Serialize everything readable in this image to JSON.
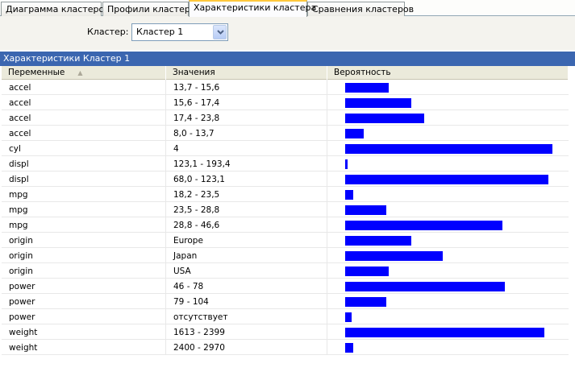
{
  "tabs": [
    {
      "label": "Диаграмма кластеров",
      "active": false
    },
    {
      "label": "Профили кластера",
      "active": false
    },
    {
      "label": "Характеристики кластера",
      "active": true
    },
    {
      "label": "Сравнения кластеров",
      "active": false
    }
  ],
  "cluster_select": {
    "label": "Кластер:",
    "value": "Кластер 1"
  },
  "panel": {
    "title": "Характеристики Кластер 1"
  },
  "grid": {
    "columns": [
      "Переменные",
      "Значения",
      "Вероятность"
    ],
    "sort_column": "Переменные",
    "bar_color": "#0000ff",
    "rows": [
      {
        "variable": "accel",
        "value": "13,7 - 15,6",
        "probability": 0.21
      },
      {
        "variable": "accel",
        "value": "15,6 - 17,4",
        "probability": 0.32
      },
      {
        "variable": "accel",
        "value": "17,4 - 23,8",
        "probability": 0.38
      },
      {
        "variable": "accel",
        "value": "8,0 - 13,7",
        "probability": 0.09
      },
      {
        "variable": "cyl",
        "value": "4",
        "probability": 1.0
      },
      {
        "variable": "displ",
        "value": "123,1 - 193,4",
        "probability": 0.01
      },
      {
        "variable": "displ",
        "value": "68,0 - 123,1",
        "probability": 0.98
      },
      {
        "variable": "mpg",
        "value": "18,2 - 23,5",
        "probability": 0.04
      },
      {
        "variable": "mpg",
        "value": "23,5 - 28,8",
        "probability": 0.2
      },
      {
        "variable": "mpg",
        "value": "28,8 - 46,6",
        "probability": 0.76
      },
      {
        "variable": "origin",
        "value": "Europe",
        "probability": 0.32
      },
      {
        "variable": "origin",
        "value": "Japan",
        "probability": 0.47
      },
      {
        "variable": "origin",
        "value": "USA",
        "probability": 0.21
      },
      {
        "variable": "power",
        "value": "46 - 78",
        "probability": 0.77
      },
      {
        "variable": "power",
        "value": "79 - 104",
        "probability": 0.2
      },
      {
        "variable": "power",
        "value": "отсутствует",
        "probability": 0.03
      },
      {
        "variable": "weight",
        "value": "1613 - 2399",
        "probability": 0.96
      },
      {
        "variable": "weight",
        "value": "2400 - 2970",
        "probability": 0.04
      }
    ]
  }
}
